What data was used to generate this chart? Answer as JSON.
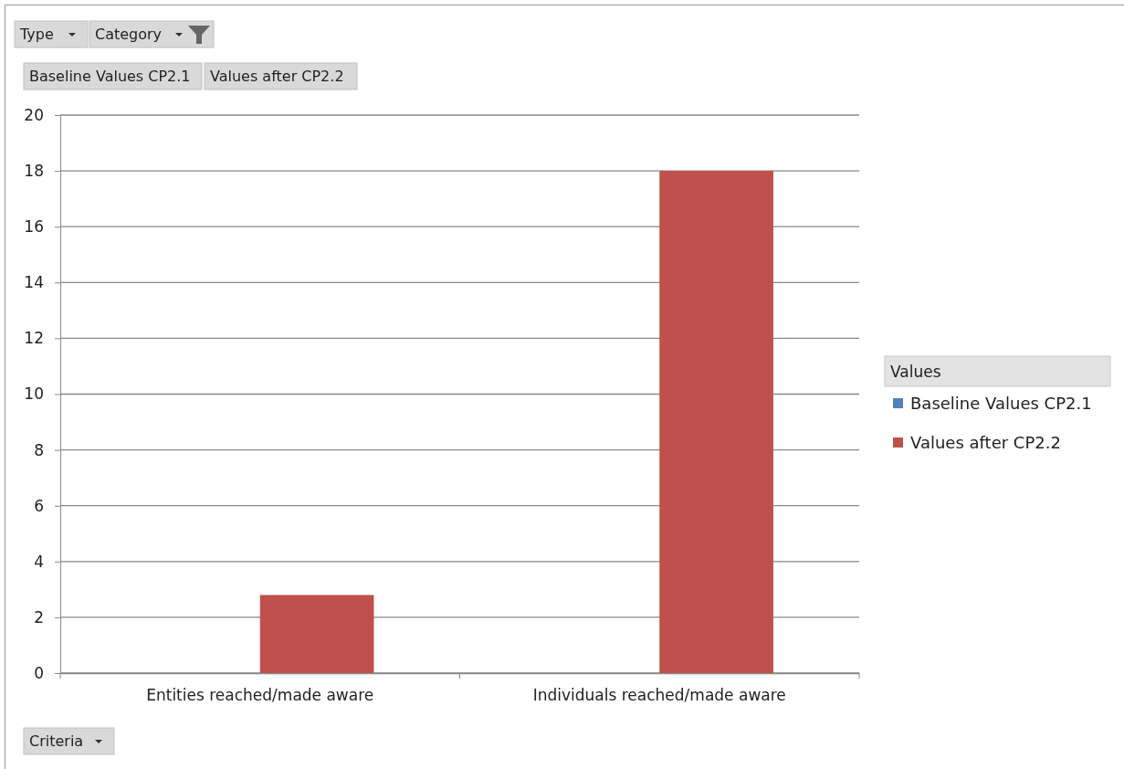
{
  "chart_data": {
    "type": "bar",
    "categories": [
      "Entities reached/made aware",
      "Individuals reached/made aware"
    ],
    "series": [
      {
        "name": "Baseline Values CP2.1",
        "color": "#4f81bd",
        "values": [
          0,
          0
        ]
      },
      {
        "name": "Values after CP2.2",
        "color": "#c0504d",
        "values": [
          2.8,
          18
        ]
      }
    ],
    "ylim": [
      0,
      20
    ],
    "yticks": [
      0,
      2,
      4,
      6,
      8,
      10,
      12,
      14,
      16,
      18,
      20
    ],
    "grid": "y",
    "legend": "right",
    "legend_title": "Values",
    "annotations": [
      "Type",
      "Category",
      "Baseline Values CP2.1",
      "Values after CP2.2",
      "Criteria"
    ]
  }
}
